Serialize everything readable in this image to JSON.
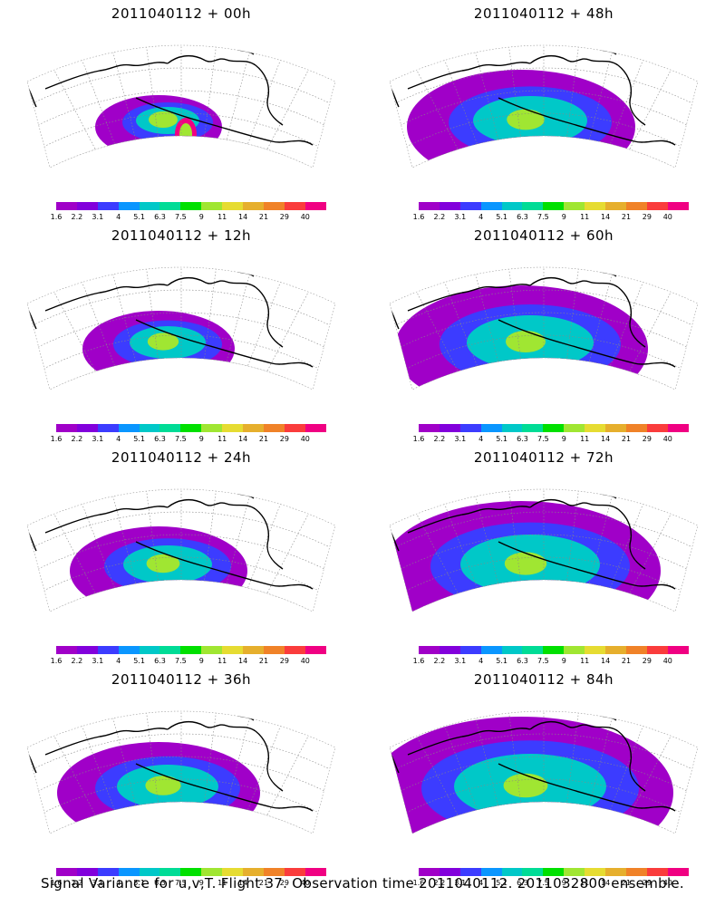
{
  "panels": [
    {
      "title": "2011040112 + 00h",
      "lead_hours": 0
    },
    {
      "title": "2011040112 + 48h",
      "lead_hours": 48
    },
    {
      "title": "2011040112 + 12h",
      "lead_hours": 12
    },
    {
      "title": "2011040112 + 60h",
      "lead_hours": 60
    },
    {
      "title": "2011040112 + 24h",
      "lead_hours": 24
    },
    {
      "title": "2011040112 + 72h",
      "lead_hours": 72
    },
    {
      "title": "2011040112 + 36h",
      "lead_hours": 36
    },
    {
      "title": "2011040112 + 84h",
      "lead_hours": 84
    }
  ],
  "colorbar": {
    "levels": [
      "1.6",
      "2.2",
      "3.1",
      "4",
      "5.1",
      "6.3",
      "7.5",
      "9",
      "11",
      "14",
      "21",
      "29",
      "40"
    ],
    "colors": [
      "#a000c8",
      "#8200dc",
      "#3c3cff",
      "#0a96ff",
      "#00c8c8",
      "#00dc96",
      "#00e000",
      "#a0e632",
      "#e6dc32",
      "#e6af2d",
      "#f08228",
      "#fa3c3c",
      "#f00082"
    ]
  },
  "caption": "Signal Variance for u,v,T. Flight 37. Observation time 2011040112. 2011032800 ensemble."
}
